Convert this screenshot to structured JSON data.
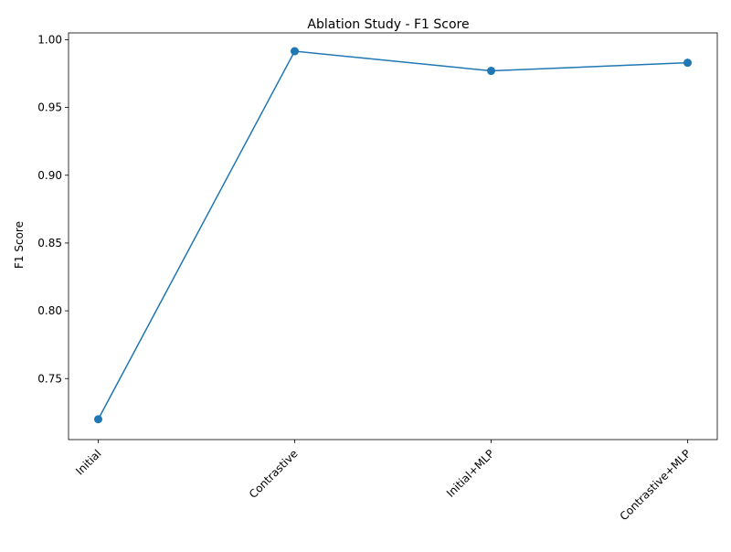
{
  "chart_data": {
    "type": "line",
    "title": "Ablation Study - F1 Score",
    "xlabel": "",
    "ylabel": "F1 Score",
    "categories": [
      "Initial",
      "Contrastive",
      "Initial+MLP",
      "Contrastive+MLP"
    ],
    "series": [
      {
        "values": [
          0.72,
          0.9915,
          0.977,
          0.983
        ],
        "color": "#1f77b4",
        "marker": "circle"
      }
    ],
    "ylim": [
      0.705,
      1.005
    ],
    "yticks": [
      0.75,
      0.8,
      0.85,
      0.9,
      0.95,
      1.0
    ],
    "ytick_labels": [
      "0.75",
      "0.80",
      "0.85",
      "0.90",
      "0.95",
      "1.00"
    ],
    "grid": false,
    "legend": "none"
  }
}
